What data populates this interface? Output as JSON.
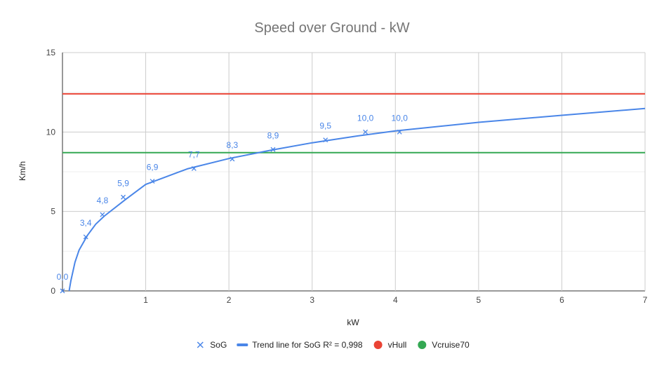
{
  "chart_data": {
    "type": "scatter",
    "title": "Speed over Ground - kW",
    "xlabel": "kW",
    "ylabel": "Km/h",
    "xlim": [
      0,
      7
    ],
    "ylim": [
      0,
      15
    ],
    "x_ticks": [
      1,
      2,
      3,
      4,
      5,
      6,
      7
    ],
    "y_ticks": [
      0,
      5,
      10,
      15
    ],
    "grid": true,
    "legend_position": "bottom",
    "series": [
      {
        "name": "SoG",
        "kind": "scatter",
        "marker": "x",
        "color": "#4a86e8",
        "x": [
          0.0,
          0.28,
          0.48,
          0.73,
          1.08,
          1.58,
          2.04,
          2.53,
          3.16,
          3.64,
          4.05
        ],
        "y": [
          0.0,
          3.4,
          4.8,
          5.9,
          6.9,
          7.7,
          8.3,
          8.9,
          9.5,
          10.0,
          10.0
        ],
        "labels": [
          "0,0",
          "3,4",
          "4,8",
          "5,9",
          "6,9",
          "7,7",
          "8,3",
          "8,9",
          "9,5",
          "10,0",
          "10,0"
        ]
      },
      {
        "name": "Trend line for SoG R² = 0,998",
        "kind": "trendline",
        "color": "#4a86e8",
        "x": [
          0.08,
          0.1,
          0.15,
          0.2,
          0.3,
          0.4,
          0.5,
          0.75,
          1.0,
          1.5,
          2.0,
          2.5,
          3.0,
          3.5,
          4.0,
          5.0,
          6.0,
          7.0
        ],
        "y": [
          0.0,
          0.62,
          1.8,
          2.57,
          3.5,
          4.2,
          4.7,
          5.72,
          6.7,
          7.68,
          8.33,
          8.85,
          9.32,
          9.72,
          10.07,
          10.61,
          11.05,
          11.48
        ]
      },
      {
        "name": "vHull",
        "kind": "hline",
        "color": "#ea4335",
        "y": 12.4
      },
      {
        "name": "Vcruise70",
        "kind": "hline",
        "color": "#34a853",
        "y": 8.7
      }
    ]
  }
}
